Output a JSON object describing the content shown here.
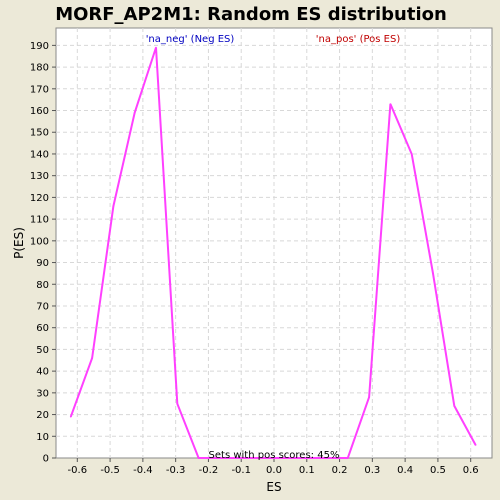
{
  "chart_data": {
    "type": "line",
    "title": "MORF_AP2M1: Random ES distribution",
    "xlabel": "ES",
    "ylabel": "P(ES)",
    "xlim": [
      -0.665,
      0.665
    ],
    "ylim": [
      0,
      198
    ],
    "x_ticks": [
      -0.6,
      -0.5,
      -0.4,
      -0.3,
      -0.2,
      -0.1,
      0.0,
      0.1,
      0.2,
      0.3,
      0.4,
      0.5,
      0.6
    ],
    "x_tick_labels": [
      "-0.6",
      "-0.5",
      "-0.4",
      "-0.3",
      "-0.2",
      "-0.1",
      "0.0",
      "0.1",
      "0.2",
      "0.3",
      "0.4",
      "0.5",
      "0.6"
    ],
    "y_ticks": [
      0,
      10,
      20,
      30,
      40,
      50,
      60,
      70,
      80,
      90,
      100,
      110,
      120,
      130,
      140,
      150,
      160,
      170,
      180,
      190
    ],
    "grid": true,
    "line_color": "#ff40ff",
    "series": [
      {
        "x": [
          -0.62,
          -0.555,
          -0.49,
          -0.425,
          -0.36,
          -0.295,
          -0.23,
          -0.165,
          -0.1,
          -0.035,
          0.03,
          0.095,
          0.16,
          0.225,
          0.29,
          0.355,
          0.42,
          0.485,
          0.55,
          0.615
        ],
        "values": [
          19,
          46,
          116,
          159,
          189,
          25,
          0,
          0,
          0,
          0,
          0,
          0,
          0,
          0,
          28,
          163,
          140,
          85,
          24,
          6
        ]
      }
    ],
    "annotations": [
      {
        "text": "'na_neg' (Neg ES)",
        "color": "#0000c0"
      },
      {
        "text": "'na_pos' (Pos ES)",
        "color": "#c00000"
      },
      {
        "text": "Sets with pos scores: 45%",
        "color": "#000000"
      }
    ]
  }
}
